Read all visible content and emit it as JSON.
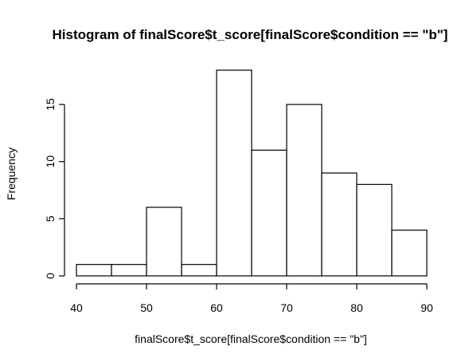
{
  "chart_data": {
    "type": "bar",
    "title": "Histogram of finalScore$t_score[finalScore$condition == \"b\"]",
    "xlabel": "finalScore$t_score[finalScore$condition == \"b\"]",
    "ylabel": "Frequency",
    "bins": [
      {
        "start": 40,
        "end": 45,
        "count": 1
      },
      {
        "start": 45,
        "end": 50,
        "count": 1
      },
      {
        "start": 50,
        "end": 55,
        "count": 6
      },
      {
        "start": 55,
        "end": 60,
        "count": 1
      },
      {
        "start": 60,
        "end": 65,
        "count": 18
      },
      {
        "start": 65,
        "end": 70,
        "count": 11
      },
      {
        "start": 70,
        "end": 75,
        "count": 15
      },
      {
        "start": 75,
        "end": 80,
        "count": 9
      },
      {
        "start": 80,
        "end": 85,
        "count": 8
      },
      {
        "start": 85,
        "end": 90,
        "count": 4
      }
    ],
    "xlim": [
      40,
      90
    ],
    "ylim": [
      0,
      18
    ],
    "x_ticks": [
      40,
      50,
      60,
      70,
      80,
      90
    ],
    "y_ticks": [
      0,
      5,
      10,
      15
    ],
    "grid": false,
    "legend": false
  }
}
